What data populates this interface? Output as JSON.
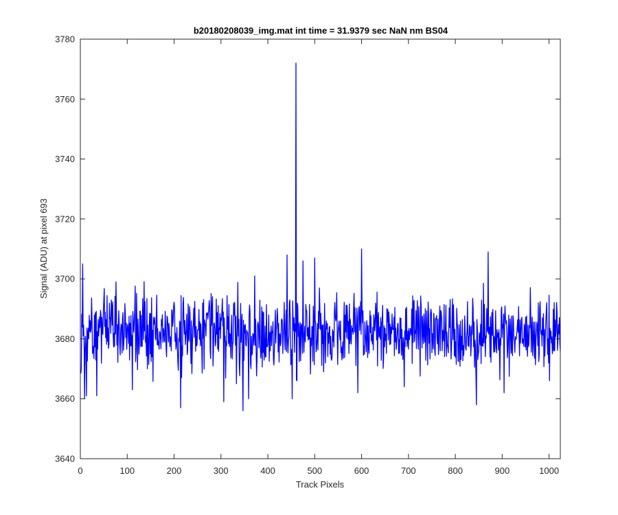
{
  "chart_data": {
    "type": "line",
    "title": "b20180208039_img.mat int time = 31.9379 sec  NaN nm BS04",
    "xlabel": "Track Pixels",
    "ylabel": "Signal (ADU) at pixel 693",
    "xlim": [
      0,
      1024
    ],
    "ylim": [
      3640,
      3780
    ],
    "xticks": [
      0,
      100,
      200,
      300,
      400,
      500,
      600,
      700,
      800,
      900,
      1000
    ],
    "yticks": [
      3640,
      3660,
      3680,
      3700,
      3720,
      3740,
      3760,
      3780
    ],
    "grid": false,
    "legend": "none",
    "series_color": "#0000ff",
    "series": [
      {
        "noise_model": {
          "count": 1024,
          "baseline": 3682,
          "amplitude": 7,
          "seed": 20180208
        },
        "points": [
          {
            "x": 1,
            "y": 3670
          },
          {
            "x": 4,
            "y": 3705
          },
          {
            "x": 8,
            "y": 3660
          },
          {
            "x": 12,
            "y": 3661
          },
          {
            "x": 34,
            "y": 3661
          },
          {
            "x": 75,
            "y": 3699
          },
          {
            "x": 110,
            "y": 3663
          },
          {
            "x": 213,
            "y": 3657
          },
          {
            "x": 305,
            "y": 3659
          },
          {
            "x": 332,
            "y": 3665
          },
          {
            "x": 346,
            "y": 3656
          },
          {
            "x": 358,
            "y": 3660
          },
          {
            "x": 371,
            "y": 3701
          },
          {
            "x": 440,
            "y": 3708
          },
          {
            "x": 451,
            "y": 3660
          },
          {
            "x": 459,
            "y": 3772
          },
          {
            "x": 461,
            "y": 3666
          },
          {
            "x": 474,
            "y": 3706
          },
          {
            "x": 499,
            "y": 3707
          },
          {
            "x": 591,
            "y": 3662
          },
          {
            "x": 599,
            "y": 3710
          },
          {
            "x": 690,
            "y": 3664
          },
          {
            "x": 844,
            "y": 3658
          },
          {
            "x": 869,
            "y": 3709
          },
          {
            "x": 903,
            "y": 3662
          },
          {
            "x": 1000,
            "y": 3666
          }
        ]
      }
    ]
  }
}
